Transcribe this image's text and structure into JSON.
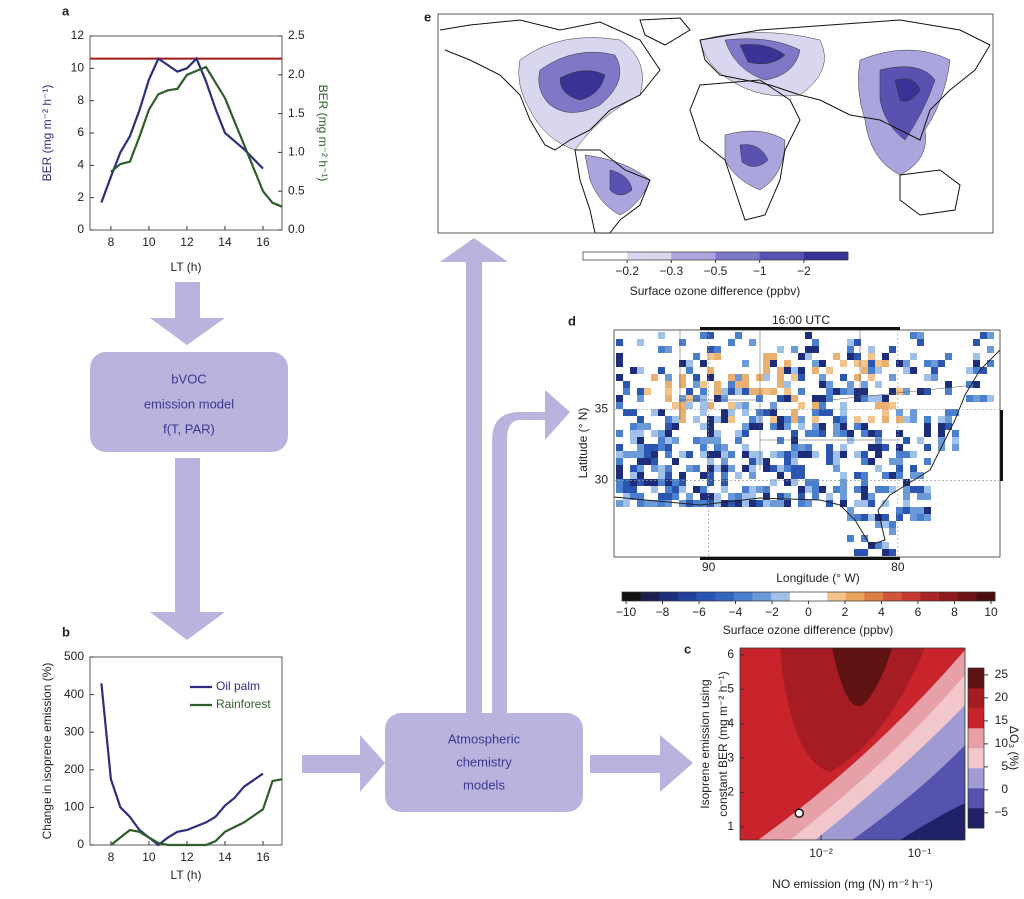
{
  "chart_data": [
    {
      "panel": "a",
      "type": "line",
      "xlabel": "LT (h)",
      "ylabel": "BER (mg m⁻² h⁻¹)",
      "y2label": "BER (mg m⁻² h⁻¹)",
      "xlim": [
        6.9,
        17
      ],
      "xticks": [
        8,
        10,
        12,
        14,
        16
      ],
      "ylim": [
        0,
        12
      ],
      "yticks": [
        0,
        2,
        4,
        6,
        8,
        10,
        12
      ],
      "y2lim": [
        0,
        2.5
      ],
      "y2ticks": [
        {
          "value": 0,
          "label": "0.0"
        },
        0.5,
        {
          "value": 1,
          "label": "1.0"
        },
        1.5,
        {
          "value": 2,
          "label": "2.0"
        },
        2.5
      ],
      "reference_line": {
        "value": 10.6,
        "color": "#a01818"
      },
      "series": [
        {
          "color": "#2d2d7e",
          "x": [
            7.5,
            8,
            8.5,
            9,
            9.5,
            10,
            10.5,
            11,
            11.5,
            12,
            12.5,
            13,
            13.5,
            14,
            15,
            16
          ],
          "values": [
            1.7,
            3.3,
            4.8,
            5.8,
            7.4,
            9.3,
            10.6,
            10.2,
            9.8,
            10,
            10.6,
            9.2,
            7.5,
            6,
            5,
            3.8
          ]
        },
        {
          "color": "#2f5e2a",
          "axis": "y2",
          "x": [
            8,
            8.5,
            9,
            9.5,
            10,
            10.5,
            11,
            11.5,
            12,
            12.5,
            13,
            13.5,
            14,
            14.5,
            15,
            15.5,
            16,
            16.5,
            17
          ],
          "values": [
            0.75,
            0.85,
            0.88,
            1.2,
            1.55,
            1.75,
            1.8,
            1.82,
            2.0,
            2.05,
            2.1,
            1.9,
            1.7,
            1.4,
            1.1,
            0.8,
            0.5,
            0.35,
            0.3
          ]
        }
      ]
    },
    {
      "panel": "b",
      "type": "line",
      "xlabel": "LT (h)",
      "ylabel": "Change in isoprene emission (%)",
      "xlim": [
        6.9,
        17
      ],
      "xticks": [
        8,
        10,
        12,
        14,
        16
      ],
      "ylim": [
        0,
        500
      ],
      "yticks": [
        0,
        100,
        200,
        300,
        400,
        500
      ],
      "legend": "upper right",
      "series": [
        {
          "name": "Oil palm",
          "color": "#2d2d7e",
          "x": [
            7.5,
            8,
            8.5,
            9,
            9.5,
            10,
            10.5,
            11,
            11.5,
            12,
            13,
            13.5,
            14,
            14.5,
            15,
            16
          ],
          "values": [
            430,
            175,
            100,
            75,
            40,
            20,
            0,
            20,
            35,
            40,
            60,
            75,
            105,
            125,
            155,
            190
          ]
        },
        {
          "name": "Rainforest",
          "color": "#2f5e2a",
          "x": [
            8,
            8.5,
            9,
            9.5,
            10,
            10.5,
            11,
            11.5,
            12,
            13,
            13.5,
            14,
            15,
            16,
            16.5,
            17
          ],
          "values": [
            0,
            20,
            40,
            35,
            20,
            5,
            0,
            0,
            0,
            0,
            10,
            35,
            60,
            95,
            170,
            175
          ]
        }
      ]
    },
    {
      "panel": "c",
      "type": "contour",
      "xscale": "log",
      "ylabel": [
        "Isoprene emission using",
        "constant BER (mg m⁻² h⁻¹)"
      ],
      "xlabel": "NO emission (mg (N) m⁻² h⁻¹)",
      "xlim": [
        0.0015,
        0.29
      ],
      "xticks": [
        {
          "value": 0.01,
          "label": "10⁻²"
        },
        {
          "value": 0.1,
          "label": "10⁻¹"
        }
      ],
      "ylim": [
        0.62,
        6.2
      ],
      "yticks": [
        1,
        2,
        3,
        4,
        5,
        6
      ],
      "marker": {
        "x": 0.006,
        "y": 1.4
      },
      "colorbar": {
        "label": "ΔO₃ (%)",
        "lim": [
          -8.3,
          26.5
        ],
        "ticks": [
          {
            "value": -5,
            "label": "−5"
          },
          0,
          5,
          10,
          15,
          20,
          25
        ],
        "colors": [
          "#1f2066",
          "#5553ae",
          "#a09ad2",
          "#f1c7cc",
          "#e6a0a8",
          "#c9242b",
          "#a51c22",
          "#5e1212"
        ]
      }
    },
    {
      "panel": "d",
      "type": "map",
      "title": "16:00 UTC",
      "ylabel": "Latitude (° N)",
      "xlabel": "Longitude (° W)",
      "xlim": [
        95,
        74.6
      ],
      "xticks": [
        90,
        80
      ],
      "ylim": [
        24.6,
        40.6
      ],
      "yticks": [
        35,
        30
      ],
      "colorbar": {
        "label": "Surface ozone difference (ppbv)",
        "ticks": [
          {
            "value": -10,
            "label": "−10"
          },
          {
            "value": -8,
            "label": "−8"
          },
          {
            "value": -6,
            "label": "−6"
          },
          {
            "value": -4,
            "label": "−4"
          },
          {
            "value": -2,
            "label": "−2"
          },
          0,
          2,
          4,
          6,
          8,
          10
        ],
        "colors": [
          "#111111",
          "#1b1f4e",
          "#1e2d7a",
          "#22409a",
          "#2a55b0",
          "#3466c0",
          "#4a7fd0",
          "#6a9ad8",
          "#9fc0e8",
          "#ffffff",
          "#ffffff",
          "#f2c38a",
          "#e9a560",
          "#de7d45",
          "#d0553a",
          "#c23a30",
          "#a82626",
          "#8c1a1a",
          "#6c1212",
          "#4a0c0c"
        ]
      }
    },
    {
      "panel": "e",
      "type": "map",
      "colorbar": {
        "label": "Surface ozone difference (ppbv)",
        "ticks": [
          {
            "value": -0.2,
            "label": "−0.2"
          },
          {
            "value": -0.3,
            "label": "−0.3"
          },
          {
            "value": -0.5,
            "label": "−0.5"
          },
          {
            "value": -1,
            "label": "−1"
          },
          {
            "value": -2,
            "label": "−2"
          }
        ],
        "colors": [
          "#ffffff",
          "#d9d7f0",
          "#aaa5dc",
          "#7f78c6",
          "#5a52b0",
          "#3a3396"
        ]
      }
    }
  ],
  "diagram": {
    "boxes": [
      {
        "lines": [
          "bVOC",
          "emission model",
          "f(T, PAR)"
        ]
      },
      {
        "lines": [
          "Atmospheric",
          "chemistry",
          "models"
        ]
      }
    ]
  }
}
